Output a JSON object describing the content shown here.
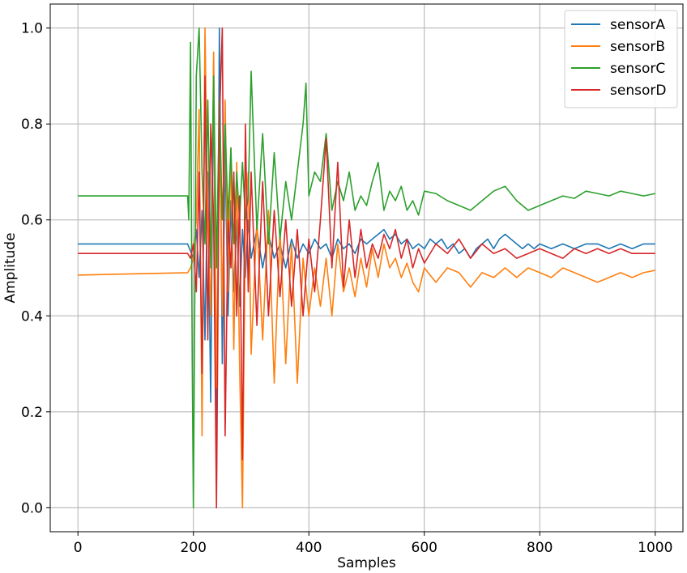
{
  "chart_data": {
    "type": "line",
    "xlabel": "Samples",
    "ylabel": "Amplitude",
    "xlim": [
      -48,
      1048
    ],
    "ylim": [
      -0.05,
      1.05
    ],
    "xticks": [
      0,
      200,
      400,
      600,
      800,
      1000
    ],
    "yticks": [
      0.0,
      0.2,
      0.4,
      0.6,
      0.8,
      1.0
    ],
    "xtick_labels": [
      "0",
      "200",
      "400",
      "600",
      "800",
      "1000"
    ],
    "ytick_labels": [
      "0.0",
      "0.2",
      "0.4",
      "0.6",
      "0.8",
      "1.0"
    ],
    "grid": true,
    "legend_position": "top-right",
    "series": [
      {
        "name": "sensorA",
        "color": "#1f77b4",
        "x": [
          0,
          190,
          200,
          205,
          210,
          215,
          220,
          225,
          230,
          235,
          240,
          245,
          250,
          255,
          260,
          265,
          270,
          275,
          280,
          285,
          290,
          295,
          300,
          310,
          320,
          330,
          340,
          350,
          360,
          370,
          380,
          390,
          400,
          410,
          420,
          430,
          440,
          450,
          460,
          470,
          480,
          490,
          500,
          510,
          520,
          530,
          540,
          550,
          560,
          570,
          580,
          590,
          600,
          610,
          620,
          630,
          640,
          650,
          660,
          670,
          680,
          690,
          700,
          710,
          720,
          730,
          740,
          750,
          760,
          770,
          780,
          790,
          800,
          820,
          840,
          860,
          880,
          900,
          920,
          940,
          960,
          980,
          1000
        ],
        "values": [
          0.55,
          0.55,
          0.52,
          0.58,
          0.48,
          0.62,
          0.35,
          0.7,
          0.22,
          0.93,
          0.05,
          1.0,
          0.3,
          0.75,
          0.4,
          0.64,
          0.45,
          0.6,
          0.42,
          0.58,
          0.48,
          0.6,
          0.52,
          0.58,
          0.5,
          0.57,
          0.52,
          0.55,
          0.5,
          0.56,
          0.52,
          0.55,
          0.53,
          0.56,
          0.54,
          0.55,
          0.52,
          0.56,
          0.54,
          0.55,
          0.53,
          0.56,
          0.55,
          0.56,
          0.57,
          0.58,
          0.56,
          0.57,
          0.55,
          0.56,
          0.54,
          0.55,
          0.54,
          0.56,
          0.55,
          0.56,
          0.54,
          0.55,
          0.53,
          0.54,
          0.52,
          0.54,
          0.55,
          0.56,
          0.54,
          0.56,
          0.57,
          0.56,
          0.55,
          0.54,
          0.55,
          0.54,
          0.55,
          0.54,
          0.55,
          0.54,
          0.55,
          0.55,
          0.54,
          0.55,
          0.54,
          0.55,
          0.55
        ]
      },
      {
        "name": "sensorB",
        "color": "#ff7f0e",
        "x": [
          0,
          190,
          195,
          200,
          205,
          210,
          215,
          220,
          225,
          230,
          235,
          240,
          245,
          250,
          255,
          260,
          265,
          270,
          275,
          280,
          285,
          290,
          295,
          300,
          310,
          320,
          330,
          340,
          350,
          360,
          370,
          380,
          390,
          400,
          410,
          420,
          430,
          440,
          450,
          460,
          470,
          480,
          490,
          500,
          510,
          520,
          530,
          540,
          550,
          560,
          570,
          580,
          590,
          600,
          620,
          640,
          660,
          680,
          700,
          720,
          740,
          760,
          780,
          800,
          820,
          840,
          860,
          880,
          900,
          920,
          940,
          960,
          980,
          1000
        ],
        "values": [
          0.485,
          0.49,
          0.5,
          0.52,
          0.6,
          0.83,
          0.15,
          1.0,
          0.6,
          0.4,
          0.95,
          0.25,
          0.8,
          0.4,
          0.85,
          0.45,
          0.75,
          0.33,
          0.72,
          0.3,
          0.0,
          0.6,
          0.7,
          0.32,
          0.6,
          0.35,
          0.62,
          0.26,
          0.58,
          0.3,
          0.55,
          0.26,
          0.52,
          0.4,
          0.5,
          0.42,
          0.52,
          0.4,
          0.55,
          0.45,
          0.5,
          0.44,
          0.52,
          0.46,
          0.54,
          0.48,
          0.55,
          0.5,
          0.52,
          0.48,
          0.51,
          0.47,
          0.45,
          0.5,
          0.47,
          0.5,
          0.49,
          0.46,
          0.49,
          0.48,
          0.5,
          0.48,
          0.5,
          0.49,
          0.48,
          0.5,
          0.49,
          0.48,
          0.47,
          0.48,
          0.49,
          0.48,
          0.49,
          0.495
        ]
      },
      {
        "name": "sensorC",
        "color": "#2ca02c",
        "x": [
          0,
          190,
          192,
          195,
          198,
          200,
          205,
          210,
          215,
          220,
          225,
          230,
          235,
          240,
          245,
          250,
          255,
          260,
          265,
          270,
          275,
          280,
          285,
          290,
          295,
          300,
          310,
          320,
          330,
          340,
          350,
          360,
          370,
          380,
          390,
          395,
          400,
          410,
          420,
          430,
          440,
          450,
          460,
          470,
          480,
          490,
          500,
          510,
          520,
          530,
          540,
          550,
          560,
          570,
          580,
          590,
          600,
          620,
          640,
          660,
          680,
          700,
          720,
          740,
          760,
          780,
          800,
          820,
          840,
          860,
          880,
          900,
          920,
          940,
          960,
          980,
          1000
        ],
        "values": [
          0.65,
          0.65,
          0.6,
          0.97,
          0.3,
          0.0,
          0.9,
          1.0,
          0.7,
          0.55,
          0.85,
          0.5,
          0.9,
          0.5,
          0.85,
          0.6,
          0.8,
          0.6,
          0.75,
          0.55,
          0.7,
          0.6,
          0.72,
          0.6,
          0.65,
          0.91,
          0.58,
          0.78,
          0.55,
          0.74,
          0.56,
          0.68,
          0.6,
          0.7,
          0.8,
          0.885,
          0.65,
          0.7,
          0.68,
          0.78,
          0.62,
          0.68,
          0.64,
          0.7,
          0.62,
          0.65,
          0.63,
          0.68,
          0.72,
          0.62,
          0.66,
          0.64,
          0.67,
          0.62,
          0.64,
          0.61,
          0.66,
          0.655,
          0.64,
          0.63,
          0.62,
          0.64,
          0.66,
          0.67,
          0.64,
          0.62,
          0.63,
          0.64,
          0.65,
          0.645,
          0.66,
          0.655,
          0.65,
          0.66,
          0.655,
          0.65,
          0.655
        ]
      },
      {
        "name": "sensorD",
        "color": "#d62728",
        "x": [
          0,
          190,
          195,
          200,
          205,
          210,
          215,
          220,
          225,
          230,
          235,
          240,
          245,
          250,
          255,
          260,
          265,
          270,
          275,
          280,
          285,
          290,
          295,
          300,
          310,
          320,
          330,
          340,
          350,
          360,
          370,
          380,
          390,
          400,
          410,
          420,
          430,
          440,
          450,
          460,
          470,
          480,
          490,
          500,
          510,
          520,
          530,
          540,
          550,
          560,
          570,
          580,
          590,
          600,
          620,
          640,
          660,
          680,
          700,
          720,
          740,
          760,
          780,
          800,
          820,
          840,
          860,
          880,
          900,
          920,
          940,
          960,
          980,
          1000
        ],
        "values": [
          0.53,
          0.53,
          0.52,
          0.55,
          0.45,
          0.7,
          0.28,
          0.9,
          0.35,
          0.8,
          0.6,
          0.0,
          0.8,
          1.0,
          0.15,
          0.6,
          0.5,
          0.7,
          0.4,
          0.65,
          0.1,
          0.8,
          0.45,
          0.7,
          0.38,
          0.68,
          0.4,
          0.62,
          0.44,
          0.6,
          0.42,
          0.58,
          0.4,
          0.56,
          0.45,
          0.6,
          0.77,
          0.5,
          0.72,
          0.46,
          0.6,
          0.48,
          0.58,
          0.5,
          0.55,
          0.52,
          0.57,
          0.54,
          0.58,
          0.52,
          0.56,
          0.5,
          0.54,
          0.51,
          0.55,
          0.53,
          0.56,
          0.52,
          0.55,
          0.53,
          0.54,
          0.52,
          0.53,
          0.54,
          0.53,
          0.52,
          0.54,
          0.53,
          0.54,
          0.53,
          0.54,
          0.53,
          0.53,
          0.53
        ]
      }
    ]
  }
}
